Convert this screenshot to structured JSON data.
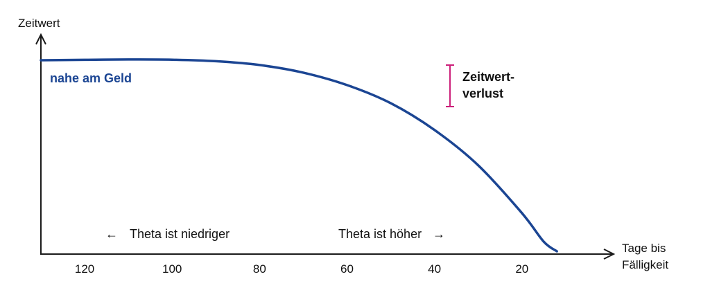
{
  "chart_data": {
    "type": "line",
    "ylabel": "Zeitwert",
    "xlabel": [
      "Tage bis",
      "Fälligkeit"
    ],
    "x_ticks": [
      120,
      100,
      80,
      60,
      40,
      20
    ],
    "xlim": [
      130,
      3
    ],
    "ylim": [
      0,
      100
    ],
    "series": [
      {
        "name": "nahe am Geld",
        "x": [
          130,
          120,
          110,
          100,
          90,
          80,
          70,
          60,
          50,
          40,
          30,
          20,
          15,
          12
        ],
        "y": [
          100,
          100.2,
          100.4,
          100.3,
          99.5,
          97.5,
          93.5,
          87,
          77.5,
          63.5,
          45,
          20,
          5,
          0
        ]
      }
    ],
    "annotations": {
      "left_note": "Theta ist niedriger",
      "right_note": "Theta ist höher",
      "left_arrow": "←",
      "right_arrow": "→",
      "loss_label": [
        "Zeitwert-",
        "verlust"
      ]
    },
    "grid": false,
    "legend": "none"
  },
  "colors": {
    "curve": "#1b4593",
    "axis": "#1a1a1a",
    "loss_marker": "#cc1f7a",
    "text": "#111111"
  }
}
